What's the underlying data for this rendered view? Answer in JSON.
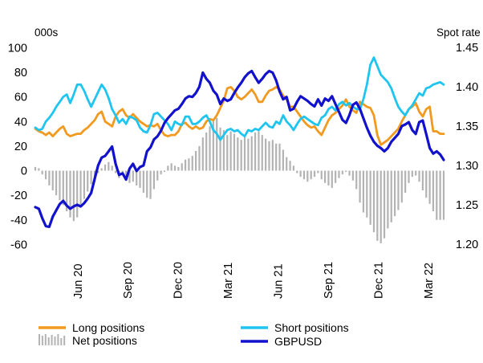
{
  "chart_data": {
    "type": "line",
    "title": "",
    "left_axis": {
      "unit_label": "000s",
      "ylim": [
        -60,
        100
      ],
      "ticks": [
        -60,
        -40,
        -20,
        0,
        20,
        40,
        60,
        80,
        100
      ]
    },
    "right_axis": {
      "unit_label": "Spot rate",
      "ylim": [
        1.2,
        1.45
      ],
      "ticks": [
        "1.20",
        "1.25",
        "1.30",
        "1.35",
        "1.40",
        "1.45"
      ]
    },
    "x_axis": {
      "range": [
        "2020-03-17",
        "2022-03-29"
      ],
      "ticks": [
        {
          "label": "Jun 20",
          "date": "2020-06-02"
        },
        {
          "label": "Sep 20",
          "date": "2020-09-01"
        },
        {
          "label": "Dec 20",
          "date": "2020-12-01"
        },
        {
          "label": "Mar 21",
          "date": "2021-03-02"
        },
        {
          "label": "Jun 21",
          "date": "2021-06-01"
        },
        {
          "label": "Sep 21",
          "date": "2021-08-31"
        },
        {
          "label": "Dec 21",
          "date": "2021-11-30"
        },
        {
          "label": "Mar 22",
          "date": "2022-03-01"
        }
      ]
    },
    "grid": false,
    "legend_position": "bottom",
    "series": [
      {
        "name": "Long positions",
        "axis": "left",
        "color": "#f29a1f",
        "type": "line",
        "values": [
          34,
          32,
          31,
          29,
          31,
          28,
          31,
          34,
          36,
          30,
          28,
          29,
          30,
          30,
          33,
          35,
          38,
          41,
          46,
          48,
          40,
          38,
          36,
          44,
          48,
          50,
          45,
          43,
          46,
          43,
          40,
          38,
          36,
          37,
          36,
          38,
          33,
          29,
          28,
          29,
          29,
          32,
          38,
          39,
          36,
          34,
          36,
          34,
          35,
          40,
          42,
          41,
          45,
          51,
          57,
          67,
          68,
          65,
          60,
          58,
          60,
          63,
          66,
          62,
          56,
          56,
          61,
          65,
          66,
          68,
          66,
          61,
          58,
          52,
          52,
          48,
          44,
          40,
          37,
          35,
          36,
          32,
          29,
          35,
          41,
          45,
          47,
          50,
          53,
          58,
          52,
          49,
          47,
          56,
          54,
          52,
          51,
          45,
          29,
          21,
          23,
          25,
          28,
          31,
          34,
          40,
          45,
          50,
          52,
          55,
          48,
          44,
          50,
          52,
          32,
          32,
          30,
          30
        ]
      },
      {
        "name": "Short positions",
        "axis": "left",
        "color": "#1ec5f0",
        "type": "line",
        "values": [
          35,
          33,
          34,
          40,
          43,
          47,
          52,
          56,
          60,
          62,
          55,
          62,
          70,
          70,
          65,
          58,
          52,
          58,
          64,
          70,
          66,
          59,
          50,
          45,
          39,
          42,
          38,
          44,
          43,
          41,
          35,
          32,
          31,
          37,
          46,
          47,
          44,
          41,
          38,
          33,
          40,
          38,
          37,
          44,
          44,
          38,
          38,
          40,
          43,
          45,
          40,
          33,
          30,
          25,
          29,
          33,
          34,
          32,
          33,
          30,
          28,
          33,
          32,
          34,
          33,
          36,
          39,
          36,
          35,
          40,
          38,
          45,
          40,
          37,
          33,
          38,
          42,
          44,
          42,
          40,
          38,
          37,
          43,
          45,
          50,
          52,
          49,
          54,
          56,
          53,
          55,
          52,
          50,
          50,
          58,
          70,
          86,
          92,
          85,
          78,
          75,
          72,
          67,
          59,
          52,
          48,
          45,
          50,
          53,
          58,
          63,
          61,
          67,
          68,
          70,
          71,
          72,
          70
        ]
      },
      {
        "name": "Net positions",
        "axis": "left",
        "color": "#b3b3b3",
        "type": "bar",
        "values": [
          3,
          2,
          -3,
          -7,
          -12,
          -16,
          -20,
          -24,
          -28,
          -33,
          -38,
          -41,
          -38,
          -30,
          -23,
          -17,
          -11,
          -9,
          -2,
          2,
          5,
          7,
          4,
          -2,
          -6,
          -3,
          -8,
          -10,
          -9,
          -12,
          -14,
          -18,
          -22,
          -23,
          -15,
          -8,
          -3,
          -1,
          4,
          6,
          4,
          3,
          6,
          9,
          10,
          12,
          16,
          20,
          27,
          31,
          36,
          42,
          43,
          35,
          33,
          29,
          32,
          30,
          27,
          25,
          28,
          26,
          28,
          31,
          32,
          29,
          26,
          24,
          25,
          22,
          22,
          17,
          11,
          8,
          4,
          -2,
          -5,
          -7,
          -9,
          -7,
          -5,
          -2,
          -7,
          -10,
          -12,
          -14,
          -10,
          -6,
          -3,
          -1,
          -4,
          -8,
          -15,
          -26,
          -34,
          -38,
          -44,
          -50,
          -57,
          -59,
          -55,
          -47,
          -42,
          -37,
          -32,
          -26,
          -18,
          -10,
          -5,
          -4,
          -9,
          -16,
          -22,
          -27,
          -33,
          -40,
          -40,
          -40
        ]
      },
      {
        "name": "GBPUSD",
        "axis": "right",
        "color": "#1212cc",
        "type": "line",
        "values": [
          1.247,
          1.245,
          1.233,
          1.223,
          1.222,
          1.235,
          1.243,
          1.251,
          1.255,
          1.249,
          1.245,
          1.248,
          1.25,
          1.248,
          1.252,
          1.258,
          1.265,
          1.283,
          1.3,
          1.31,
          1.312,
          1.318,
          1.324,
          1.302,
          1.288,
          1.29,
          1.282,
          1.296,
          1.302,
          1.293,
          1.298,
          1.3,
          1.318,
          1.323,
          1.333,
          1.337,
          1.344,
          1.354,
          1.36,
          1.365,
          1.37,
          1.372,
          1.378,
          1.385,
          1.388,
          1.387,
          1.392,
          1.4,
          1.418,
          1.41,
          1.405,
          1.395,
          1.39,
          1.378,
          1.385,
          1.382,
          1.384,
          1.392,
          1.399,
          1.405,
          1.412,
          1.417,
          1.42,
          1.412,
          1.405,
          1.41,
          1.416,
          1.42,
          1.418,
          1.408,
          1.394,
          1.384,
          1.387,
          1.37,
          1.372,
          1.381,
          1.388,
          1.385,
          1.382,
          1.378,
          1.375,
          1.384,
          1.376,
          1.385,
          1.382,
          1.388,
          1.378,
          1.368,
          1.358,
          1.354,
          1.364,
          1.377,
          1.38,
          1.372,
          1.36,
          1.348,
          1.338,
          1.33,
          1.325,
          1.322,
          1.318,
          1.322,
          1.33,
          1.335,
          1.34,
          1.35,
          1.352,
          1.355,
          1.345,
          1.34,
          1.355,
          1.357,
          1.34,
          1.322,
          1.315,
          1.318,
          1.314,
          1.307
        ]
      }
    ]
  }
}
